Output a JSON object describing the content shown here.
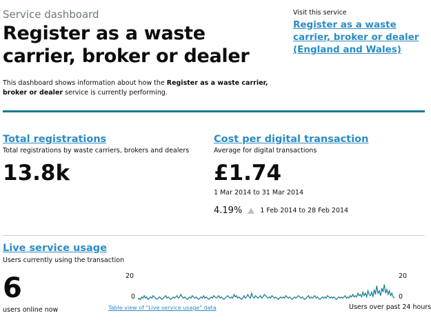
{
  "header": {
    "kicker": "Service dashboard",
    "title": "Register as a waste carrier, broker or dealer",
    "intro_prefix": "This dashboard shows information about how the ",
    "intro_service": "Register as a waste carrier, broker or dealer",
    "intro_suffix": " service is currently performing."
  },
  "visit": {
    "label": "Visit this service",
    "link": "Register as a waste carrier, broker or dealer (England and Wales)"
  },
  "total_registrations": {
    "title": "Total registrations",
    "description": "Total registrations by waste carriers, brokers and dealers",
    "value": "13.8k"
  },
  "cost_per_transaction": {
    "title": "Cost per digital transaction",
    "description": "Average for digital transactions",
    "value": "£1.74",
    "period": "1 Mar 2014 to 31 Mar 2014",
    "change": "4.19%",
    "change_period": "1 Feb 2014 to 28 Feb 2014"
  },
  "live_usage": {
    "title": "Live service usage",
    "description": "Users currently using the transaction",
    "value": "6",
    "value_label": "users online now",
    "table_link": "Table view of \"Live service usage\" data",
    "axis_label": "Users over past 24 hours",
    "y_max_label": "20",
    "y_min_label": "0"
  },
  "colors": {
    "accent_rule": "#0f7a8e",
    "link": "#2b8cc4",
    "chart_line": "#0f7a8e"
  },
  "chart_data": {
    "type": "line",
    "ylim": [
      0,
      20
    ],
    "series": [
      {
        "values": [
          1,
          2,
          1,
          3,
          2,
          4,
          2,
          3,
          1,
          2,
          3,
          2,
          4,
          3,
          2,
          1,
          2,
          3,
          2,
          1,
          2,
          3,
          4,
          2,
          3,
          2,
          1,
          2,
          3,
          2,
          3,
          4,
          2,
          3,
          5,
          3,
          2,
          3,
          2,
          1,
          2,
          3,
          2,
          4,
          3,
          2,
          3,
          2,
          1,
          2,
          3,
          2,
          4,
          2,
          3,
          2,
          1,
          2,
          3,
          2,
          4,
          3,
          2,
          3,
          4,
          2,
          3,
          2,
          1,
          2,
          3,
          4,
          3,
          2,
          3,
          2,
          5,
          3,
          4,
          2,
          3,
          2,
          1,
          2,
          4,
          2,
          3,
          5,
          3,
          2,
          6,
          3,
          2,
          4,
          3,
          2,
          3,
          4,
          2,
          3,
          5,
          4,
          3,
          2,
          3,
          2,
          4,
          3,
          2,
          3,
          2,
          1,
          2,
          3,
          2,
          3,
          2,
          4,
          3,
          2,
          3,
          2,
          1,
          2,
          3,
          2,
          3,
          4,
          3,
          2,
          3,
          2,
          1,
          2,
          3,
          4,
          2,
          3,
          2,
          3,
          4,
          2,
          3,
          2,
          1,
          2,
          3,
          2,
          3,
          2,
          4,
          3,
          2,
          3,
          2,
          3,
          2,
          1,
          2,
          3,
          2,
          3,
          2,
          3,
          4,
          2,
          3,
          2,
          4,
          3,
          5,
          3,
          4,
          3,
          6,
          4,
          5,
          3,
          7,
          4,
          6,
          3,
          8,
          5,
          4,
          7,
          3,
          9,
          5,
          12,
          6,
          8,
          4,
          10,
          7,
          13,
          6,
          9,
          5,
          8,
          4,
          6,
          3,
          2
        ]
      }
    ]
  }
}
